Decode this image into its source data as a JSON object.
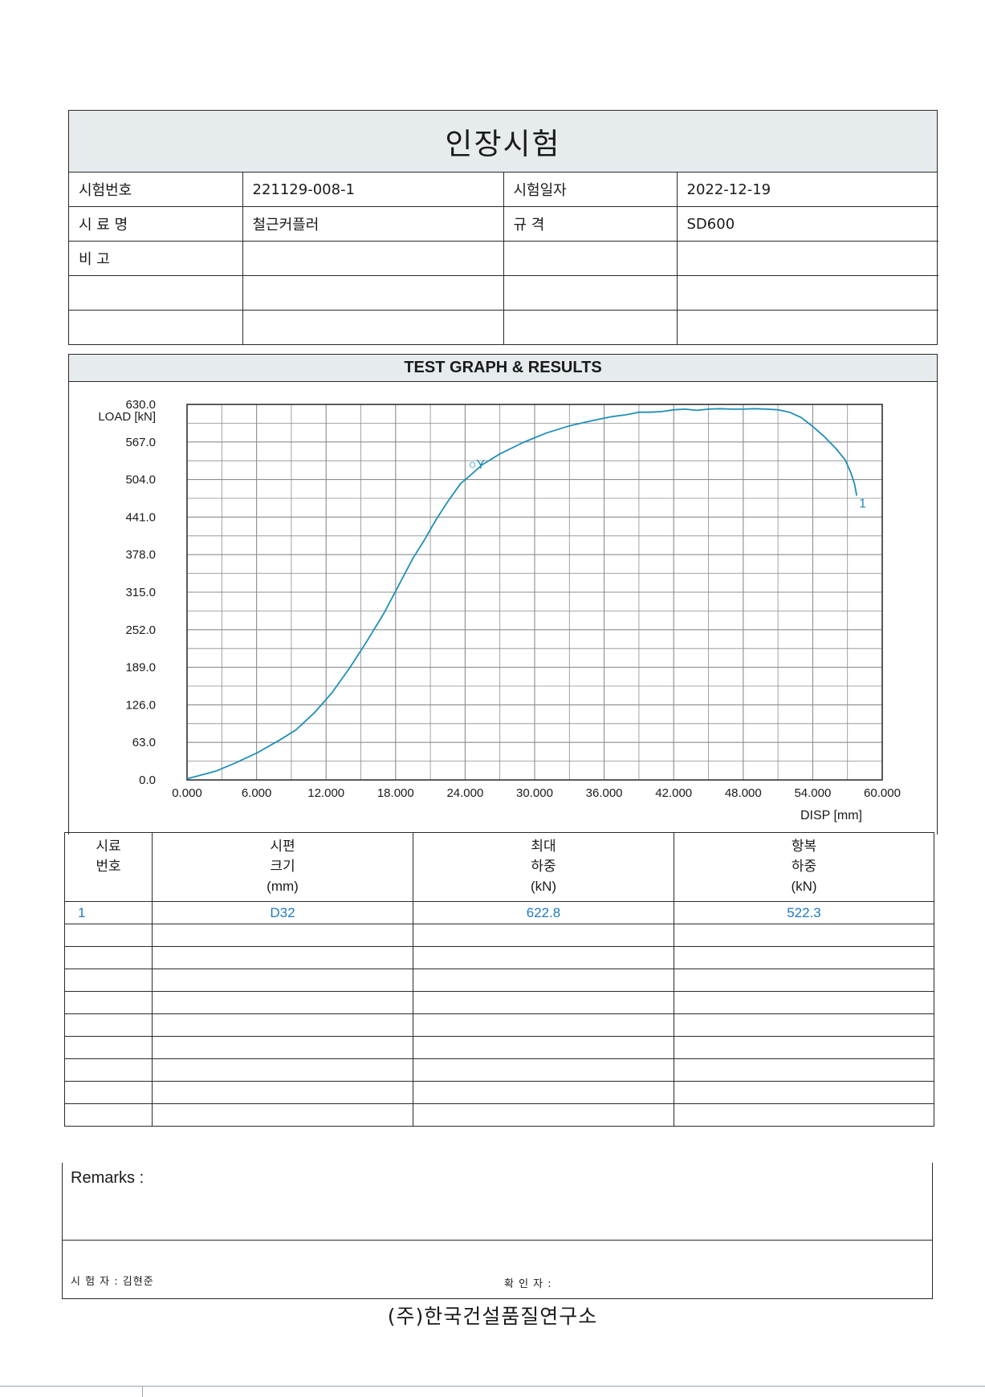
{
  "document": {
    "title": "인장시험",
    "info_rows": [
      {
        "label1": "시험번호",
        "value1": "221129-008-1",
        "label2": "시험일자",
        "value2": "2022-12-19"
      },
      {
        "label1": "시 료 명",
        "value1": "철근커플러",
        "label2": "규      격",
        "value2": "SD600"
      },
      {
        "label1": "비      고",
        "value1": "",
        "label2": "",
        "value2": ""
      },
      {
        "label1": "",
        "value1": "",
        "label2": "",
        "value2": ""
      },
      {
        "label1": "",
        "value1": "",
        "label2": "",
        "value2": ""
      }
    ],
    "section_title": "TEST GRAPH & RESULTS",
    "results": {
      "headers": [
        "시료\n번호",
        "시편\n크기\n(mm)",
        "최대\n하중\n(kN)",
        "항복\n하중\n(kN)"
      ],
      "rows": [
        [
          "1",
          "D32",
          "622.8",
          "522.3"
        ],
        [
          "",
          "",
          "",
          ""
        ],
        [
          "",
          "",
          "",
          ""
        ],
        [
          "",
          "",
          "",
          ""
        ],
        [
          "",
          "",
          "",
          ""
        ],
        [
          "",
          "",
          "",
          ""
        ],
        [
          "",
          "",
          "",
          ""
        ],
        [
          "",
          "",
          "",
          ""
        ],
        [
          "",
          "",
          "",
          ""
        ],
        [
          "",
          "",
          "",
          ""
        ]
      ]
    },
    "remarks_label": "Remarks :",
    "tester": "시 험 자 : 김현준",
    "confirmer": "확 인 자 :",
    "company": "(주)한국건설품질연구소"
  },
  "chart_data": {
    "type": "line",
    "ylabel": "LOAD [kN]",
    "xlabel": "DISP [mm]",
    "xlim": [
      0,
      60
    ],
    "ylim": [
      0,
      630
    ],
    "x_ticks": [
      "0.000",
      "6.000",
      "12.000",
      "18.000",
      "24.000",
      "30.000",
      "36.000",
      "42.000",
      "48.000",
      "54.000",
      "60.000"
    ],
    "y_ticks": [
      "0.0",
      "63.0",
      "126.0",
      "189.0",
      "252.0",
      "315.0",
      "378.0",
      "441.0",
      "504.0",
      "567.0",
      "630.0"
    ],
    "grid": true,
    "line_color": "#1f8fb8",
    "series": [
      {
        "name": "1",
        "x": [
          0,
          1,
          2.5,
          4,
          6,
          8,
          9.4,
          11,
          12.5,
          14,
          15.5,
          17,
          18.5,
          19.5,
          20.5,
          21.5,
          22.5,
          23.6,
          24.5,
          25.5,
          27,
          29,
          31,
          33,
          35,
          36.5,
          38,
          39,
          40,
          41,
          42,
          43,
          44,
          45,
          46,
          47,
          48,
          49,
          50,
          51,
          52,
          53,
          54,
          55,
          56,
          56.8,
          57.3,
          57.6,
          57.8
        ],
        "y": [
          2,
          7,
          15,
          27,
          45,
          67,
          84,
          113,
          146,
          187,
          232,
          280,
          335,
          372,
          403,
          437,
          467,
          497,
          512,
          529,
          547,
          566,
          582,
          594,
          603,
          609,
          613,
          617,
          617,
          618,
          621,
          622,
          620,
          622,
          622.8,
          622,
          622,
          622.8,
          622,
          621,
          617,
          608,
          593,
          576,
          556,
          537,
          515,
          497,
          477
        ]
      }
    ],
    "annotations": [
      {
        "text": "1",
        "x": 58,
        "y": 457
      },
      {
        "text": "○Y",
        "x": 24.3,
        "y": 522.3
      }
    ]
  }
}
